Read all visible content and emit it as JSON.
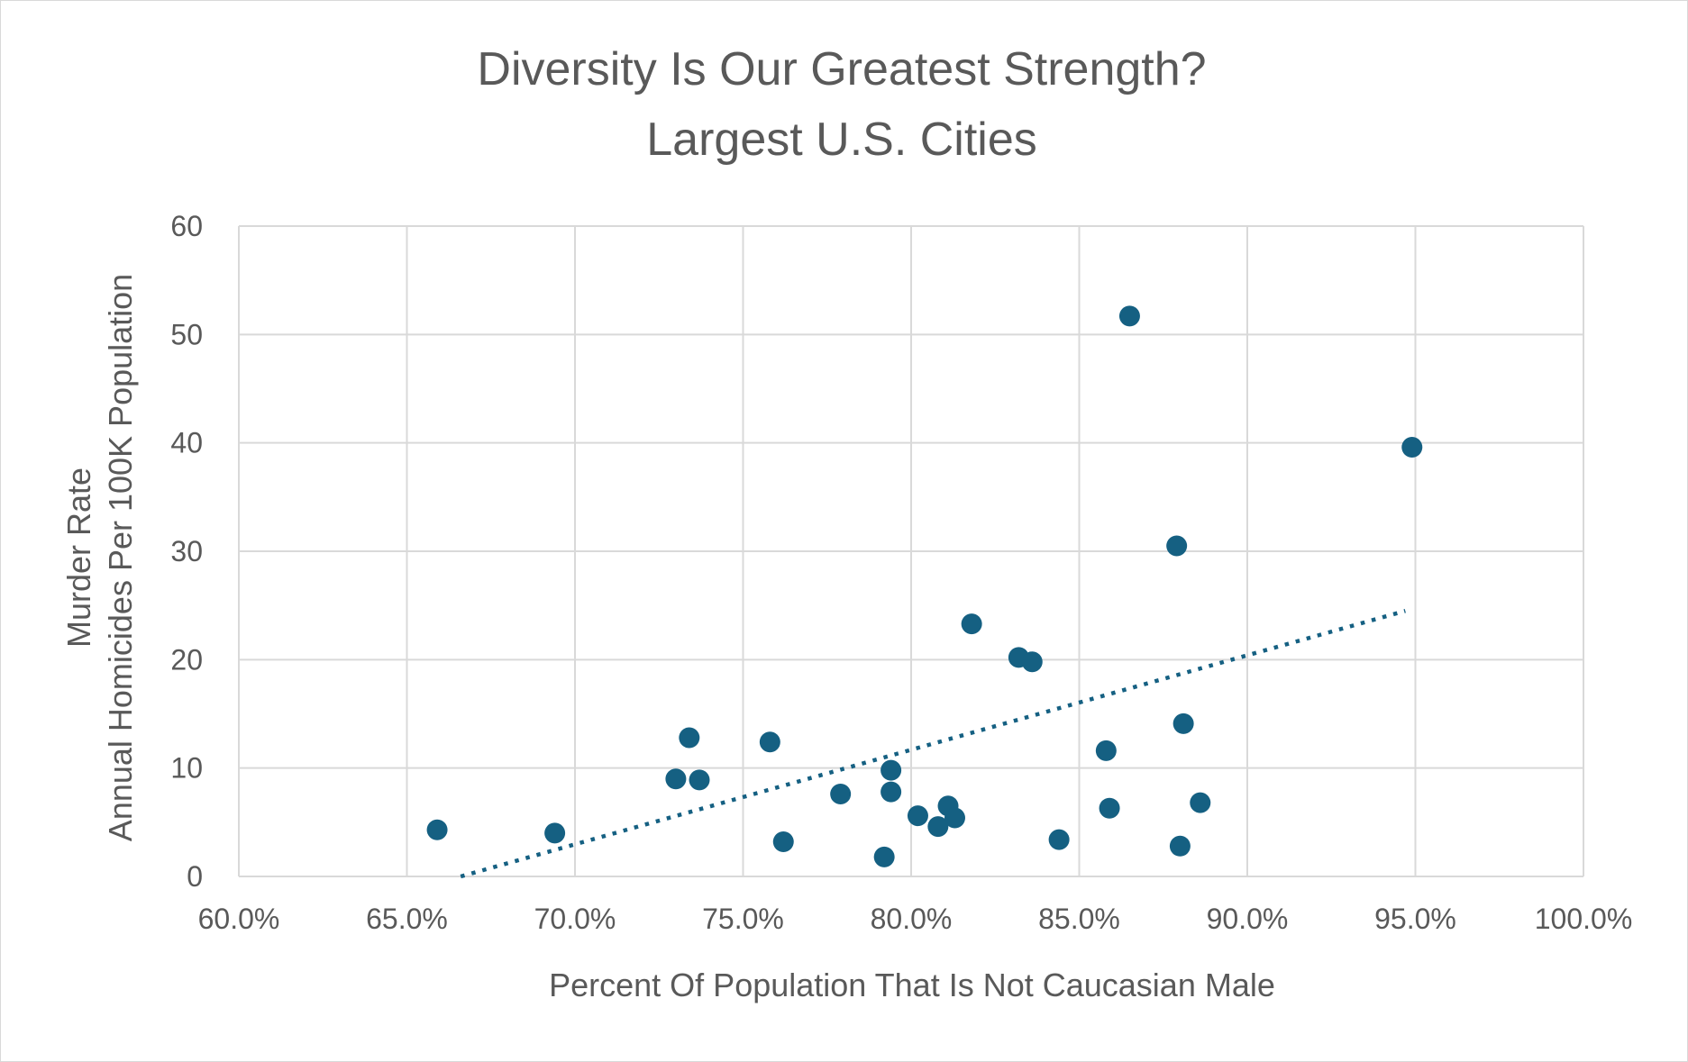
{
  "chart_data": {
    "type": "scatter",
    "title": "Diversity Is Our Greatest Strength?",
    "subtitle": "Largest U.S. Cities",
    "xlabel": "Percent Of Population That Is Not Caucasian Male",
    "ylabel_line1": "Murder Rate",
    "ylabel_line2": "Annual Homicides Per 100K Population",
    "xlim": [
      0.6,
      1.0
    ],
    "ylim": [
      0,
      60
    ],
    "x_ticks": [
      0.6,
      0.65,
      0.7,
      0.75,
      0.8,
      0.85,
      0.9,
      0.95,
      1.0
    ],
    "x_tick_labels": [
      "60.0%",
      "65.0%",
      "70.0%",
      "75.0%",
      "80.0%",
      "85.0%",
      "90.0%",
      "95.0%",
      "100.0%"
    ],
    "y_ticks": [
      0,
      10,
      20,
      30,
      40,
      50,
      60
    ],
    "y_tick_labels": [
      "0",
      "10",
      "20",
      "30",
      "40",
      "50",
      "60"
    ],
    "grid": true,
    "legend": "none",
    "point_color": "#156082",
    "series": [
      {
        "points": [
          {
            "x": 0.659,
            "y": 4.3
          },
          {
            "x": 0.694,
            "y": 4.0
          },
          {
            "x": 0.73,
            "y": 9.0
          },
          {
            "x": 0.734,
            "y": 12.8
          },
          {
            "x": 0.737,
            "y": 8.9
          },
          {
            "x": 0.758,
            "y": 12.4
          },
          {
            "x": 0.762,
            "y": 3.2
          },
          {
            "x": 0.779,
            "y": 7.6
          },
          {
            "x": 0.792,
            "y": 1.8
          },
          {
            "x": 0.794,
            "y": 9.8
          },
          {
            "x": 0.794,
            "y": 7.8
          },
          {
            "x": 0.802,
            "y": 5.6
          },
          {
            "x": 0.808,
            "y": 4.6
          },
          {
            "x": 0.811,
            "y": 6.5
          },
          {
            "x": 0.813,
            "y": 5.4
          },
          {
            "x": 0.818,
            "y": 23.3
          },
          {
            "x": 0.832,
            "y": 20.2
          },
          {
            "x": 0.836,
            "y": 19.8
          },
          {
            "x": 0.844,
            "y": 3.4
          },
          {
            "x": 0.858,
            "y": 11.6
          },
          {
            "x": 0.859,
            "y": 6.3
          },
          {
            "x": 0.865,
            "y": 51.7
          },
          {
            "x": 0.879,
            "y": 30.5
          },
          {
            "x": 0.88,
            "y": 2.8
          },
          {
            "x": 0.881,
            "y": 14.1
          },
          {
            "x": 0.886,
            "y": 6.8
          },
          {
            "x": 0.949,
            "y": 39.6
          }
        ]
      }
    ],
    "trendline": {
      "style": "dotted",
      "type": "linear",
      "x": [
        0.666,
        0.947
      ],
      "y": [
        0,
        24.5
      ]
    }
  }
}
